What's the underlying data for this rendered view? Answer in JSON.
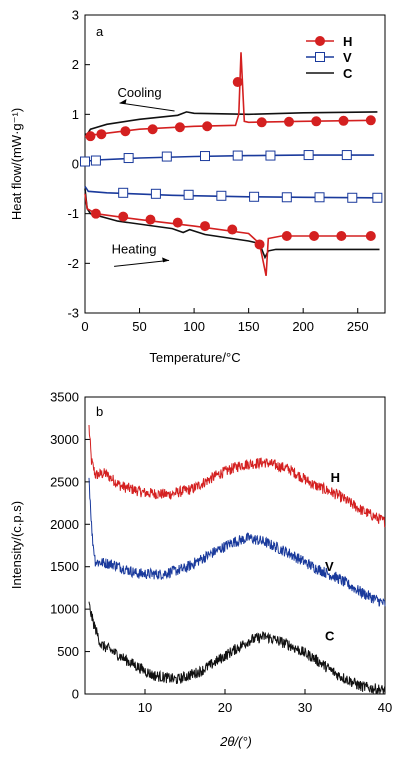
{
  "colors": {
    "H": "#d42020",
    "V": "#1a3a9c",
    "C": "#111111"
  },
  "chart_data": [
    {
      "panel_label": "a",
      "type": "line",
      "xlabel": "Temperature/°C",
      "ylabel": "Heat flow/(mW·g⁻¹)",
      "xlim": [
        0,
        275
      ],
      "ylim": [
        -3,
        3
      ],
      "xticks": [
        0,
        50,
        100,
        150,
        200,
        250
      ],
      "yticks": [
        -3,
        -2,
        -1,
        0,
        1,
        2,
        3
      ],
      "legend": {
        "position": "top-right",
        "entries": [
          {
            "key": "H",
            "label": "H",
            "marker": "filled-circle"
          },
          {
            "key": "V",
            "label": "V",
            "marker": "open-square"
          },
          {
            "key": "C",
            "label": "C",
            "marker": "none"
          }
        ]
      },
      "annotations": [
        {
          "text": "Cooling",
          "x": 50,
          "y": 1.35,
          "arrow": "left"
        },
        {
          "text": "Heating",
          "x": 45,
          "y": -1.8,
          "arrow": "right"
        }
      ],
      "series": [
        {
          "key": "C",
          "cooling": [
            [
              268,
              1.05
            ],
            [
              200,
              1.03
            ],
            [
              150,
              1.0
            ],
            [
              100,
              1.02
            ],
            [
              93,
              1.05
            ],
            [
              85,
              0.98
            ],
            [
              50,
              0.9
            ],
            [
              20,
              0.8
            ],
            [
              5,
              0.7
            ],
            [
              2,
              0.6
            ],
            [
              0,
              0.6
            ]
          ],
          "heating": [
            [
              0,
              -0.5
            ],
            [
              2,
              -0.9
            ],
            [
              5,
              -1.0
            ],
            [
              30,
              -1.15
            ],
            [
              80,
              -1.3
            ],
            [
              90,
              -1.38
            ],
            [
              96,
              -1.32
            ],
            [
              110,
              -1.42
            ],
            [
              150,
              -1.55
            ],
            [
              160,
              -1.6
            ],
            [
              165,
              -1.88
            ],
            [
              168,
              -1.75
            ],
            [
              175,
              -1.72
            ],
            [
              220,
              -1.72
            ],
            [
              270,
              -1.72
            ]
          ]
        },
        {
          "key": "H",
          "cooling": [
            [
              265,
              0.88
            ],
            [
              200,
              0.86
            ],
            [
              150,
              0.84
            ],
            [
              146,
              0.86
            ],
            [
              143,
              2.25
            ],
            [
              141,
              1.0
            ],
            [
              138,
              0.78
            ],
            [
              100,
              0.76
            ],
            [
              50,
              0.7
            ],
            [
              20,
              0.62
            ],
            [
              5,
              0.58
            ],
            [
              0,
              0.55
            ]
          ],
          "heating": [
            [
              0,
              -0.6
            ],
            [
              2,
              -0.9
            ],
            [
              10,
              -1.0
            ],
            [
              50,
              -1.12
            ],
            [
              100,
              -1.25
            ],
            [
              150,
              -1.4
            ],
            [
              160,
              -1.6
            ],
            [
              166,
              -2.25
            ],
            [
              168,
              -1.5
            ],
            [
              180,
              -1.45
            ],
            [
              220,
              -1.45
            ],
            [
              265,
              -1.45
            ]
          ],
          "markers_cooling": [
            [
              5,
              0.56
            ],
            [
              15,
              0.6
            ],
            [
              37,
              0.66
            ],
            [
              62,
              0.7
            ],
            [
              87,
              0.74
            ],
            [
              112,
              0.76
            ],
            [
              140,
              1.65
            ],
            [
              162,
              0.84
            ],
            [
              187,
              0.85
            ],
            [
              212,
              0.86
            ],
            [
              237,
              0.87
            ],
            [
              262,
              0.88
            ]
          ],
          "markers_heating": [
            [
              10,
              -1.0
            ],
            [
              35,
              -1.06
            ],
            [
              60,
              -1.12
            ],
            [
              85,
              -1.18
            ],
            [
              110,
              -1.25
            ],
            [
              135,
              -1.32
            ],
            [
              160,
              -1.62
            ],
            [
              185,
              -1.45
            ],
            [
              210,
              -1.45
            ],
            [
              235,
              -1.45
            ],
            [
              262,
              -1.45
            ]
          ]
        },
        {
          "key": "V",
          "cooling": [
            [
              265,
              0.18
            ],
            [
              200,
              0.18
            ],
            [
              150,
              0.17
            ],
            [
              100,
              0.15
            ],
            [
              50,
              0.12
            ],
            [
              10,
              0.08
            ],
            [
              0,
              0.05
            ]
          ],
          "heating": [
            [
              0,
              -0.45
            ],
            [
              3,
              -0.55
            ],
            [
              20,
              -0.58
            ],
            [
              80,
              -0.63
            ],
            [
              150,
              -0.66
            ],
            [
              200,
              -0.67
            ],
            [
              265,
              -0.68
            ]
          ],
          "markers_cooling": [
            [
              0,
              0.05
            ],
            [
              10,
              0.07
            ],
            [
              40,
              0.12
            ],
            [
              75,
              0.15
            ],
            [
              110,
              0.16
            ],
            [
              140,
              0.17
            ],
            [
              170,
              0.17
            ],
            [
              205,
              0.18
            ],
            [
              240,
              0.18
            ]
          ],
          "markers_heating": [
            [
              35,
              -0.58
            ],
            [
              65,
              -0.6
            ],
            [
              95,
              -0.62
            ],
            [
              125,
              -0.64
            ],
            [
              155,
              -0.66
            ],
            [
              185,
              -0.67
            ],
            [
              215,
              -0.67
            ],
            [
              245,
              -0.68
            ],
            [
              268,
              -0.68
            ]
          ]
        }
      ]
    },
    {
      "panel_label": "b",
      "type": "line",
      "xlabel": "2θ/(°)",
      "ylabel": "Intensity/(c.p.s)",
      "xlim": [
        2.5,
        40
      ],
      "ylim": [
        0,
        3500
      ],
      "xticks": [
        10,
        20,
        30,
        40
      ],
      "yticks": [
        0,
        500,
        1000,
        1500,
        2000,
        2500,
        3000,
        3500
      ],
      "series": [
        {
          "key": "H",
          "label": "H",
          "label_pos": [
            33.2,
            2500
          ],
          "points": [
            [
              3,
              3150
            ],
            [
              3.3,
              2750
            ],
            [
              3.8,
              2580
            ],
            [
              5,
              2600
            ],
            [
              7,
              2450
            ],
            [
              10,
              2370
            ],
            [
              13,
              2350
            ],
            [
              16,
              2420
            ],
            [
              19,
              2580
            ],
            [
              22,
              2700
            ],
            [
              25,
              2730
            ],
            [
              28,
              2650
            ],
            [
              31,
              2470
            ],
            [
              34,
              2350
            ],
            [
              37,
              2170
            ],
            [
              40,
              2030
            ]
          ]
        },
        {
          "key": "V",
          "label": "V",
          "label_pos": [
            32.5,
            1450
          ],
          "points": [
            [
              3,
              2550
            ],
            [
              3.4,
              1850
            ],
            [
              3.8,
              1560
            ],
            [
              6,
              1530
            ],
            [
              9,
              1420
            ],
            [
              12,
              1410
            ],
            [
              15,
              1480
            ],
            [
              18,
              1640
            ],
            [
              21,
              1790
            ],
            [
              23,
              1840
            ],
            [
              25,
              1790
            ],
            [
              28,
              1660
            ],
            [
              31,
              1500
            ],
            [
              34,
              1370
            ],
            [
              37,
              1200
            ],
            [
              40,
              1060
            ]
          ]
        },
        {
          "key": "C",
          "label": "C",
          "label_pos": [
            32.5,
            630
          ],
          "points": [
            [
              3,
              1050
            ],
            [
              3.5,
              850
            ],
            [
              4.5,
              580
            ],
            [
              6,
              500
            ],
            [
              8,
              380
            ],
            [
              11,
              220
            ],
            [
              14,
              170
            ],
            [
              17,
              270
            ],
            [
              20,
              450
            ],
            [
              23,
              630
            ],
            [
              25,
              680
            ],
            [
              28,
              580
            ],
            [
              31,
              430
            ],
            [
              34,
              230
            ],
            [
              37,
              90
            ],
            [
              40,
              40
            ]
          ]
        }
      ]
    }
  ]
}
